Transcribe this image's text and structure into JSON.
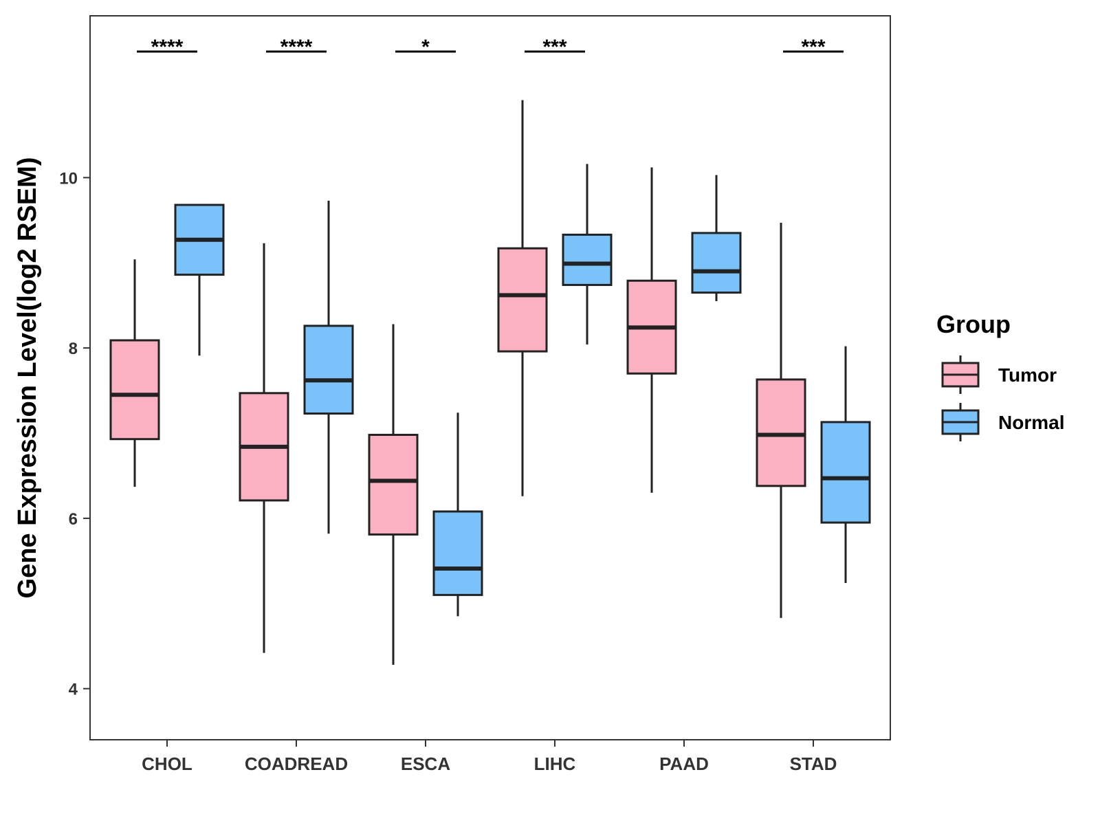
{
  "chart_data": {
    "type": "boxplot",
    "title": "",
    "xlabel": "",
    "ylabel": "Gene Expression Level(log2 RSEM)",
    "ylim": [
      3.4,
      11.9
    ],
    "yticks": [
      4,
      6,
      8,
      10
    ],
    "grid": false,
    "legend": {
      "title": "Group",
      "position": "right"
    },
    "categories": [
      "CHOL",
      "COADREAD",
      "ESCA",
      "LIHC",
      "PAAD",
      "STAD"
    ],
    "series": [
      {
        "name": "Tumor",
        "color": "#FBB1C2",
        "boxes": [
          {
            "min": 6.37,
            "q1": 6.93,
            "median": 7.45,
            "q3": 8.09,
            "max": 9.04
          },
          {
            "min": 4.42,
            "q1": 6.21,
            "median": 6.84,
            "q3": 7.47,
            "max": 9.23
          },
          {
            "min": 4.28,
            "q1": 5.81,
            "median": 6.44,
            "q3": 6.98,
            "max": 8.28
          },
          {
            "min": 6.26,
            "q1": 7.96,
            "median": 8.62,
            "q3": 9.17,
            "max": 10.91
          },
          {
            "min": 6.3,
            "q1": 7.7,
            "median": 8.24,
            "q3": 8.79,
            "max": 10.12
          },
          {
            "min": 4.83,
            "q1": 6.38,
            "median": 6.98,
            "q3": 7.63,
            "max": 9.47
          }
        ]
      },
      {
        "name": "Normal",
        "color": "#79C2FA",
        "boxes": [
          {
            "min": 7.91,
            "q1": 8.86,
            "median": 9.27,
            "q3": 9.68,
            "max": 9.68
          },
          {
            "min": 5.82,
            "q1": 7.23,
            "median": 7.62,
            "q3": 8.26,
            "max": 9.73
          },
          {
            "min": 4.85,
            "q1": 5.1,
            "median": 5.41,
            "q3": 6.08,
            "max": 7.24
          },
          {
            "min": 8.04,
            "q1": 8.74,
            "median": 8.99,
            "q3": 9.33,
            "max": 10.16
          },
          {
            "min": 8.55,
            "q1": 8.65,
            "median": 8.9,
            "q3": 9.35,
            "max": 10.03
          },
          {
            "min": 5.24,
            "q1": 5.95,
            "median": 6.47,
            "q3": 7.13,
            "max": 8.02
          }
        ]
      }
    ],
    "annotations": [
      {
        "category": "CHOL",
        "label": "****"
      },
      {
        "category": "COADREAD",
        "label": "****"
      },
      {
        "category": "ESCA",
        "label": "*"
      },
      {
        "category": "LIHC",
        "label": "***"
      },
      {
        "category": "PAAD",
        "label": ""
      },
      {
        "category": "STAD",
        "label": "***"
      }
    ]
  }
}
